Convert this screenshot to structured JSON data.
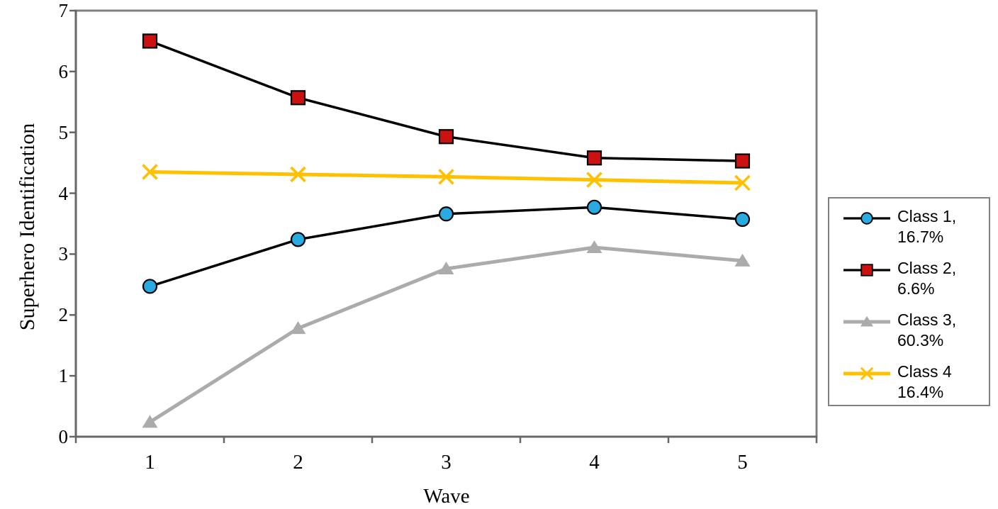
{
  "chart_data": {
    "type": "line",
    "title": "",
    "xlabel": "Wave",
    "ylabel": "Superhero Identification",
    "x": [
      1,
      2,
      3,
      4,
      5
    ],
    "xticks": [
      "1",
      "2",
      "3",
      "4",
      "5"
    ],
    "yticks": [
      "0",
      "1",
      "2",
      "3",
      "4",
      "5",
      "6",
      "7"
    ],
    "ylim": [
      0,
      7
    ],
    "grid": false,
    "legend_position": "right-outside",
    "colors": {
      "plot_border": "#808080",
      "axis_line": "#666666",
      "class1_marker": "#29ABE2",
      "class2_marker": "#CC1111",
      "class3_line": "#ABABAB",
      "class4_line": "#FFC000",
      "series_line_black": "#000000"
    },
    "series": [
      {
        "name": "Class 1,",
        "pct": "16.7%",
        "marker": "circle",
        "line_color": "#000000",
        "marker_color": "#29ABE2",
        "values": [
          2.47,
          3.24,
          3.66,
          3.77,
          3.57
        ]
      },
      {
        "name": "Class 2,",
        "pct": "6.6%",
        "marker": "square",
        "line_color": "#000000",
        "marker_color": "#CC1111",
        "values": [
          6.5,
          5.57,
          4.93,
          4.58,
          4.53
        ]
      },
      {
        "name": "Class 3,",
        "pct": "60.3%",
        "marker": "triangle",
        "line_color": "#ABABAB",
        "marker_color": "#ABABAB",
        "values": [
          0.24,
          1.78,
          2.76,
          3.11,
          2.89
        ]
      },
      {
        "name": "Class 4",
        "pct": "16.4%",
        "marker": "x",
        "line_color": "#FFC000",
        "marker_color": "#FFC000",
        "values": [
          4.35,
          4.31,
          4.27,
          4.22,
          4.17
        ]
      }
    ]
  }
}
